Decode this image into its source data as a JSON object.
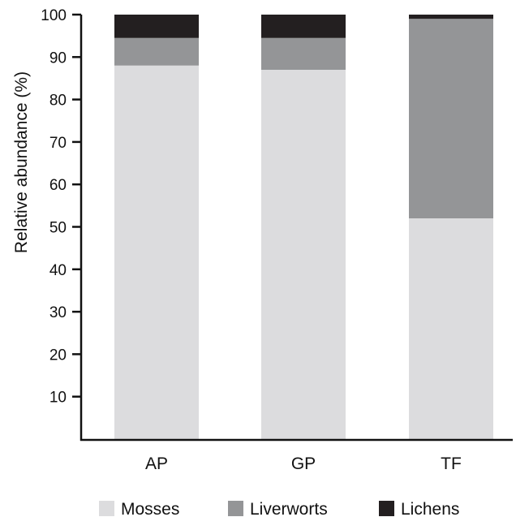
{
  "chart_data": {
    "type": "bar",
    "stacked": true,
    "title": "",
    "xlabel": "",
    "ylabel": "Relative abundance (%)",
    "ylim": [
      0,
      100
    ],
    "yticks": [
      10,
      20,
      30,
      40,
      50,
      60,
      70,
      80,
      90,
      100
    ],
    "categories": [
      "AP",
      "GP",
      "TF"
    ],
    "series": [
      {
        "name": "Mosses",
        "color": "#dcdcde",
        "values": [
          88,
          87,
          52
        ]
      },
      {
        "name": "Liverworts",
        "color": "#949597",
        "values": [
          6.5,
          7.5,
          47
        ]
      },
      {
        "name": "Lichens",
        "color": "#231f20",
        "values": [
          5.5,
          5.5,
          1
        ]
      }
    ],
    "legend_position": "bottom",
    "grid": false
  }
}
